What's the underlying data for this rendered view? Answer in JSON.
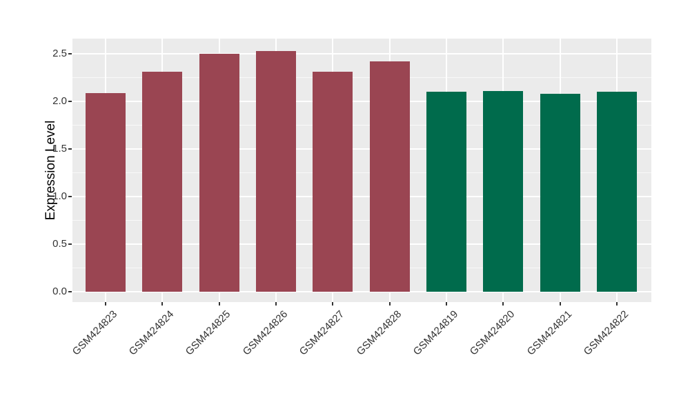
{
  "chart_data": {
    "type": "bar",
    "title": "",
    "xlabel": "",
    "ylabel": "Expression Level",
    "categories": [
      "GSM424823",
      "GSM424824",
      "GSM424825",
      "GSM424826",
      "GSM424827",
      "GSM424828",
      "GSM424819",
      "GSM424820",
      "GSM424821",
      "GSM424822"
    ],
    "values": [
      2.09,
      2.31,
      2.5,
      2.53,
      2.31,
      2.42,
      2.1,
      2.11,
      2.08,
      2.1
    ],
    "bar_colors": [
      "#9A4552",
      "#9A4552",
      "#9A4552",
      "#9A4552",
      "#9A4552",
      "#9A4552",
      "#006B4C",
      "#006B4C",
      "#006B4C",
      "#006B4C"
    ],
    "y_ticks": [
      0.0,
      0.5,
      1.0,
      1.5,
      2.0,
      2.5
    ],
    "y_minor_ticks": [
      0.25,
      0.75,
      1.25,
      1.75,
      2.25
    ],
    "ylim": [
      -0.11,
      2.66
    ],
    "grid": "horizontal major+minor white lines, vertical white line at each category center",
    "legend_position": "none",
    "panel_background": "#EBEBEB",
    "gridline_color": "#FFFFFF",
    "axis_text_color": "#333333"
  }
}
